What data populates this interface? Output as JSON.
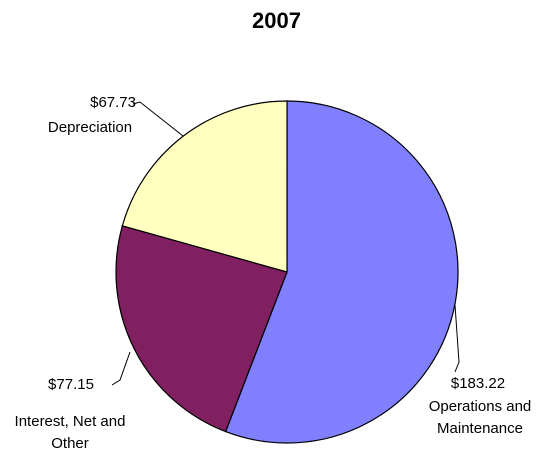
{
  "chart_data": {
    "type": "pie",
    "title": "2007",
    "categories": [
      "Operations and Maintenance",
      "Interest, Net and Other",
      "Depreciation"
    ],
    "values": [
      183.22,
      77.15,
      67.73
    ],
    "value_labels": [
      "$183.22",
      "$77.15",
      "$67.73"
    ],
    "colors": [
      "#8080ff",
      "#802060",
      "#ffffc0"
    ]
  }
}
